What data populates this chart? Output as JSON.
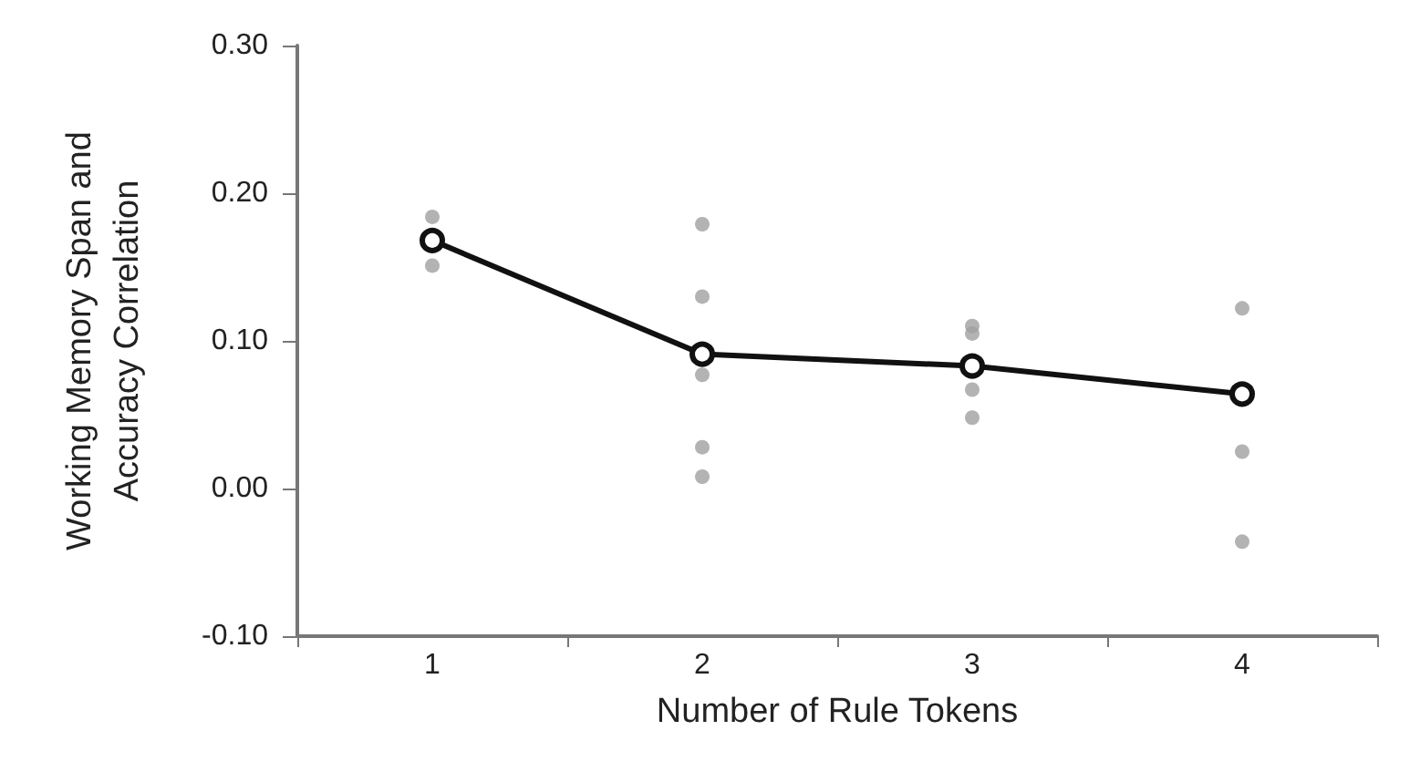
{
  "chart_data": {
    "type": "line",
    "xlabel": "Number of Rule Tokens",
    "ylabel": "Working Memory Span and\nAccuracy Correlation",
    "categories": [
      "1",
      "2",
      "3",
      "4"
    ],
    "series": [
      {
        "type": "scatter",
        "color": "#a0a0a0",
        "marker": "circle",
        "x": [
          "1",
          "1",
          "2",
          "2",
          "2",
          "2",
          "2",
          "3",
          "3",
          "3",
          "3",
          "4",
          "4",
          "4"
        ],
        "values": [
          0.184,
          0.151,
          0.179,
          0.13,
          0.077,
          0.028,
          0.008,
          0.11,
          0.105,
          0.067,
          0.048,
          0.122,
          0.025,
          -0.036
        ]
      },
      {
        "type": "line",
        "color": "#111111",
        "marker": "circle",
        "line_style": "solid",
        "values": [
          0.168,
          0.091,
          0.083,
          0.064
        ]
      }
    ],
    "ylim": [
      -0.1,
      0.3
    ],
    "yticks": [
      {
        "value": -0.1,
        "label": "-0.10"
      },
      {
        "value": 0,
        "label": "0.00"
      },
      {
        "value": 0.1,
        "label": "0.10"
      },
      {
        "value": 0.2,
        "label": "0.20"
      },
      {
        "value": 0.3,
        "label": "0.30"
      }
    ],
    "grid": false
  }
}
